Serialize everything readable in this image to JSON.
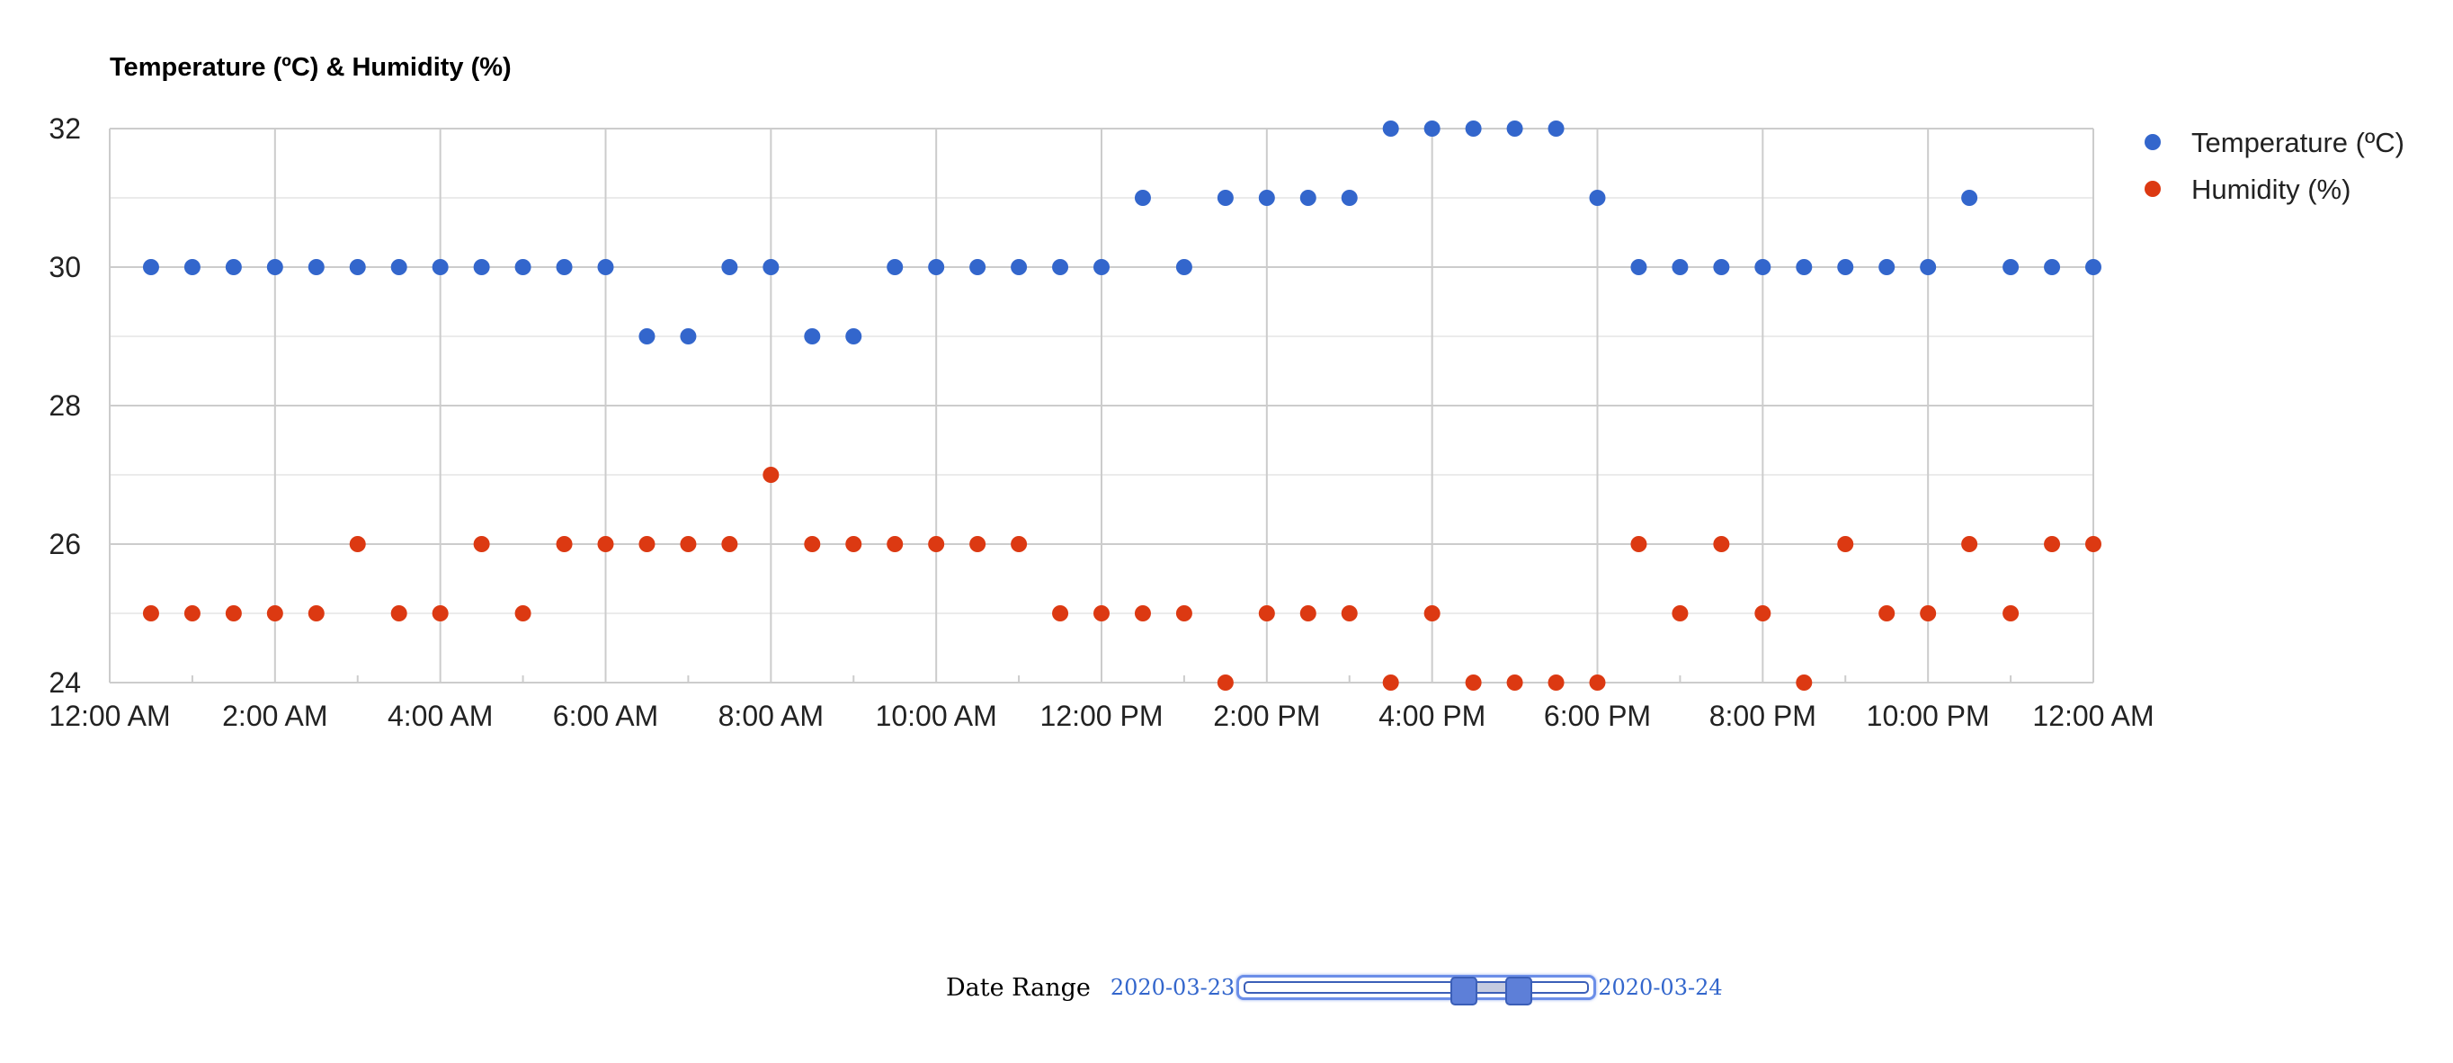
{
  "chart_data": {
    "type": "scatter",
    "title": "Temperature (ºC) & Humidity (%)",
    "xlabel": "",
    "ylabel": "",
    "x_unit": "hours since 12:00 AM",
    "xlim": [
      0,
      24
    ],
    "ylim": [
      24,
      32
    ],
    "x_ticks": [
      0,
      2,
      4,
      6,
      8,
      10,
      12,
      14,
      16,
      18,
      20,
      22,
      24
    ],
    "x_tick_labels": [
      "12:00 AM",
      "2:00 AM",
      "4:00 AM",
      "6:00 AM",
      "8:00 AM",
      "10:00 AM",
      "12:00 PM",
      "2:00 PM",
      "4:00 PM",
      "6:00 PM",
      "8:00 PM",
      "10:00 PM",
      "12:00 AM"
    ],
    "y_ticks": [
      24,
      26,
      28,
      30,
      32
    ],
    "grid": true,
    "legend_position": "right",
    "x": [
      0.5,
      1,
      1.5,
      2,
      2.5,
      3,
      3.5,
      4,
      4.5,
      5,
      5.5,
      6,
      6.5,
      7,
      7.5,
      8,
      8.5,
      9,
      9.5,
      10,
      10.5,
      11,
      11.5,
      12,
      12.5,
      13,
      13.5,
      14,
      14.5,
      15,
      15.5,
      16,
      16.5,
      17,
      17.5,
      18,
      18.5,
      19,
      19.5,
      20,
      20.5,
      21,
      21.5,
      22,
      22.5,
      23,
      23.5,
      24
    ],
    "series": [
      {
        "name": "Temperature (ºC)",
        "color": "#3366cc",
        "values": [
          30,
          30,
          30,
          30,
          30,
          30,
          30,
          30,
          30,
          30,
          30,
          30,
          29,
          29,
          30,
          30,
          29,
          29,
          30,
          30,
          30,
          30,
          30,
          30,
          31,
          30,
          31,
          31,
          31,
          31,
          32,
          32,
          32,
          32,
          32,
          31,
          30,
          30,
          30,
          30,
          30,
          30,
          30,
          30,
          31,
          30,
          30,
          30
        ]
      },
      {
        "name": "Humidity (%)",
        "color": "#dc3912",
        "values": [
          25,
          25,
          25,
          25,
          25,
          26,
          25,
          25,
          26,
          25,
          26,
          26,
          26,
          26,
          26,
          27,
          26,
          26,
          26,
          26,
          26,
          26,
          25,
          25,
          25,
          25,
          24,
          25,
          25,
          25,
          24,
          25,
          24,
          24,
          24,
          24,
          26,
          25,
          26,
          25,
          24,
          26,
          25,
          25,
          26,
          25,
          26,
          26
        ]
      }
    ]
  },
  "date_range": {
    "label": "Date Range",
    "start": "2020-03-23",
    "end": "2020-03-24",
    "selection": [
      0.64,
      0.8
    ]
  }
}
